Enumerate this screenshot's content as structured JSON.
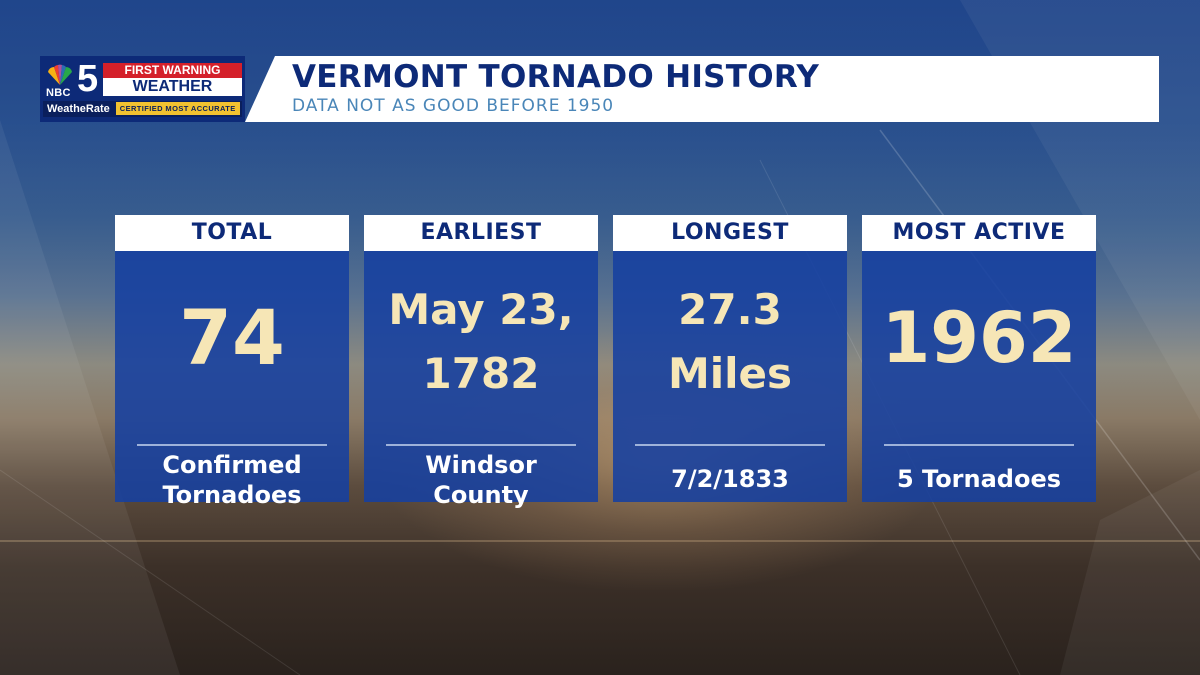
{
  "header": {
    "logo": {
      "network": "NBC",
      "channel": "5",
      "first_warning": "FIRST WARNING",
      "weather": "WEATHER",
      "weatherate": "WeatheRate",
      "certified": "CERTIFIED MOST ACCURATE"
    },
    "title": "VERMONT TORNADO HISTORY",
    "subtitle": "DATA NOT AS GOOD BEFORE 1950"
  },
  "cards": [
    {
      "label": "TOTAL",
      "value_lines": [
        "74"
      ],
      "caption_lines": [
        "Confirmed",
        "Tornadoes"
      ]
    },
    {
      "label": "EARLIEST",
      "value_lines": [
        "May 23,",
        "1782"
      ],
      "caption_lines": [
        "Windsor",
        "County"
      ]
    },
    {
      "label": "LONGEST",
      "value_lines": [
        "27.3",
        "Miles"
      ],
      "caption_lines": [
        "7/2/1833"
      ]
    },
    {
      "label": "MOST ACTIVE",
      "value_lines": [
        "1962"
      ],
      "caption_lines": [
        "5 Tornadoes"
      ]
    }
  ],
  "colors": {
    "header_navy": "#0d2a78",
    "subtitle_blue": "#4a86b8",
    "card_blue": "#1640a0",
    "value_cream": "#f6e6b6",
    "first_warning_red": "#d4202a"
  }
}
